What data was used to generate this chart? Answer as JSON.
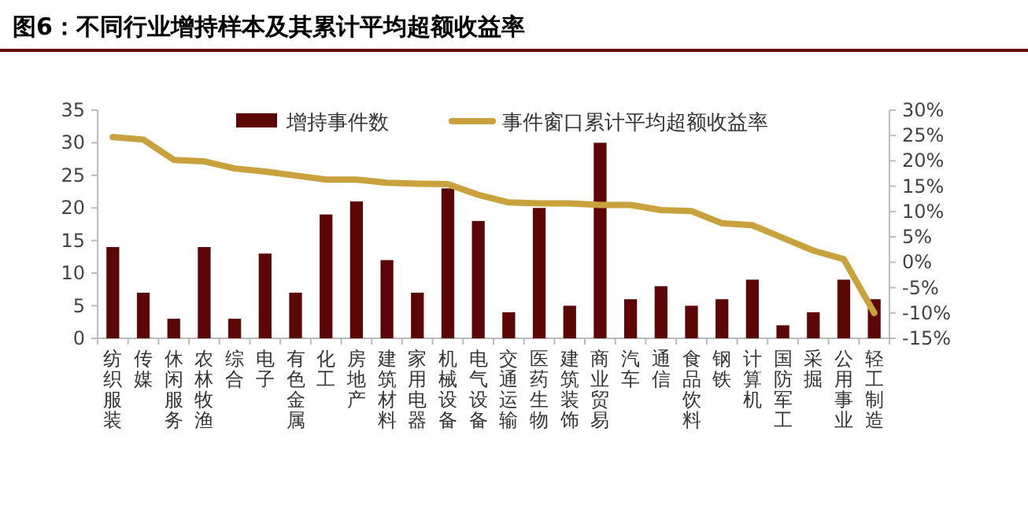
{
  "chart_data": {
    "type": "bar",
    "title": "图6：不同行业增持样本及其累计平均超额收益率",
    "categories": [
      "纺织服装",
      "传媒",
      "休闲服务",
      "农林牧渔",
      "综合",
      "电子",
      "有色金属",
      "化工",
      "房地产",
      "建筑材料",
      "家用电器",
      "机械设备",
      "电气设备",
      "交通运输",
      "医药生物",
      "建筑装饰",
      "商业贸易",
      "汽车",
      "通信",
      "食品饮料",
      "钢铁",
      "计算机",
      "国防军工",
      "采掘",
      "公用事业",
      "轻工制造"
    ],
    "series": [
      {
        "name": "增持事件数",
        "color": "#5c0606",
        "values": [
          14,
          7,
          3,
          14,
          3,
          13,
          7,
          19,
          21,
          12,
          7,
          23,
          18,
          4,
          20,
          5,
          30,
          6,
          8,
          5,
          6,
          9,
          2,
          4,
          9,
          6
        ]
      },
      {
        "name": "事件窗口累计平均超额收益率",
        "type": "line",
        "axis": "y2",
        "color": "#c9a23e",
        "values": [
          24.7,
          24.2,
          20.2,
          19.9,
          18.5,
          17.9,
          17.1,
          16.3,
          16.3,
          15.7,
          15.5,
          15.4,
          13.3,
          11.8,
          11.6,
          11.6,
          11.3,
          11.3,
          10.3,
          10.1,
          7.7,
          7.3,
          4.8,
          2.3,
          0.6,
          -10.0
        ]
      }
    ],
    "ylim": [
      0,
      35
    ],
    "yticks": [
      0,
      5,
      10,
      15,
      20,
      25,
      30,
      35
    ],
    "y2lim": [
      -15,
      30
    ],
    "y2ticks": [
      {
        "value": -15,
        "label": "-15%"
      },
      {
        "value": -10,
        "label": "-10%"
      },
      {
        "value": -5,
        "label": "-5%"
      },
      {
        "value": 0,
        "label": "0%"
      },
      {
        "value": 5,
        "label": "5%"
      },
      {
        "value": 10,
        "label": "10%"
      },
      {
        "value": 15,
        "label": "15%"
      },
      {
        "value": 20,
        "label": "20%"
      },
      {
        "value": 25,
        "label": "25%"
      },
      {
        "value": 30,
        "label": "30%"
      }
    ],
    "legend": "top",
    "grid": false
  }
}
